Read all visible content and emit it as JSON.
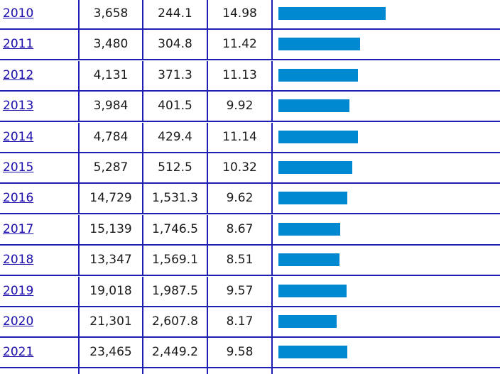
{
  "table": {
    "rows": [
      {
        "year": "2010",
        "col_a": "3,658",
        "col_b": "244.1",
        "col_c": "14.98",
        "bar_value": 14.98
      },
      {
        "year": "2011",
        "col_a": "3,480",
        "col_b": "304.8",
        "col_c": "11.42",
        "bar_value": 11.42
      },
      {
        "year": "2012",
        "col_a": "4,131",
        "col_b": "371.3",
        "col_c": "11.13",
        "bar_value": 11.13
      },
      {
        "year": "2013",
        "col_a": "3,984",
        "col_b": "401.5",
        "col_c": "9.92",
        "bar_value": 9.92
      },
      {
        "year": "2014",
        "col_a": "4,784",
        "col_b": "429.4",
        "col_c": "11.14",
        "bar_value": 11.14
      },
      {
        "year": "2015",
        "col_a": "5,287",
        "col_b": "512.5",
        "col_c": "10.32",
        "bar_value": 10.32
      },
      {
        "year": "2016",
        "col_a": "14,729",
        "col_b": "1,531.3",
        "col_c": "9.62",
        "bar_value": 9.62
      },
      {
        "year": "2017",
        "col_a": "15,139",
        "col_b": "1,746.5",
        "col_c": "8.67",
        "bar_value": 8.67
      },
      {
        "year": "2018",
        "col_a": "13,347",
        "col_b": "1,569.1",
        "col_c": "8.51",
        "bar_value": 8.51
      },
      {
        "year": "2019",
        "col_a": "19,018",
        "col_b": "1,987.5",
        "col_c": "9.57",
        "bar_value": 9.57
      },
      {
        "year": "2020",
        "col_a": "21,301",
        "col_b": "2,607.8",
        "col_c": "8.17",
        "bar_value": 8.17
      },
      {
        "year": "2021",
        "col_a": "23,465",
        "col_b": "2,449.2",
        "col_c": "9.58",
        "bar_value": 9.58
      }
    ]
  },
  "colors": {
    "bar": "#0088d1",
    "grid_line": "#1e1eb4",
    "link": "#1a0dab"
  }
}
